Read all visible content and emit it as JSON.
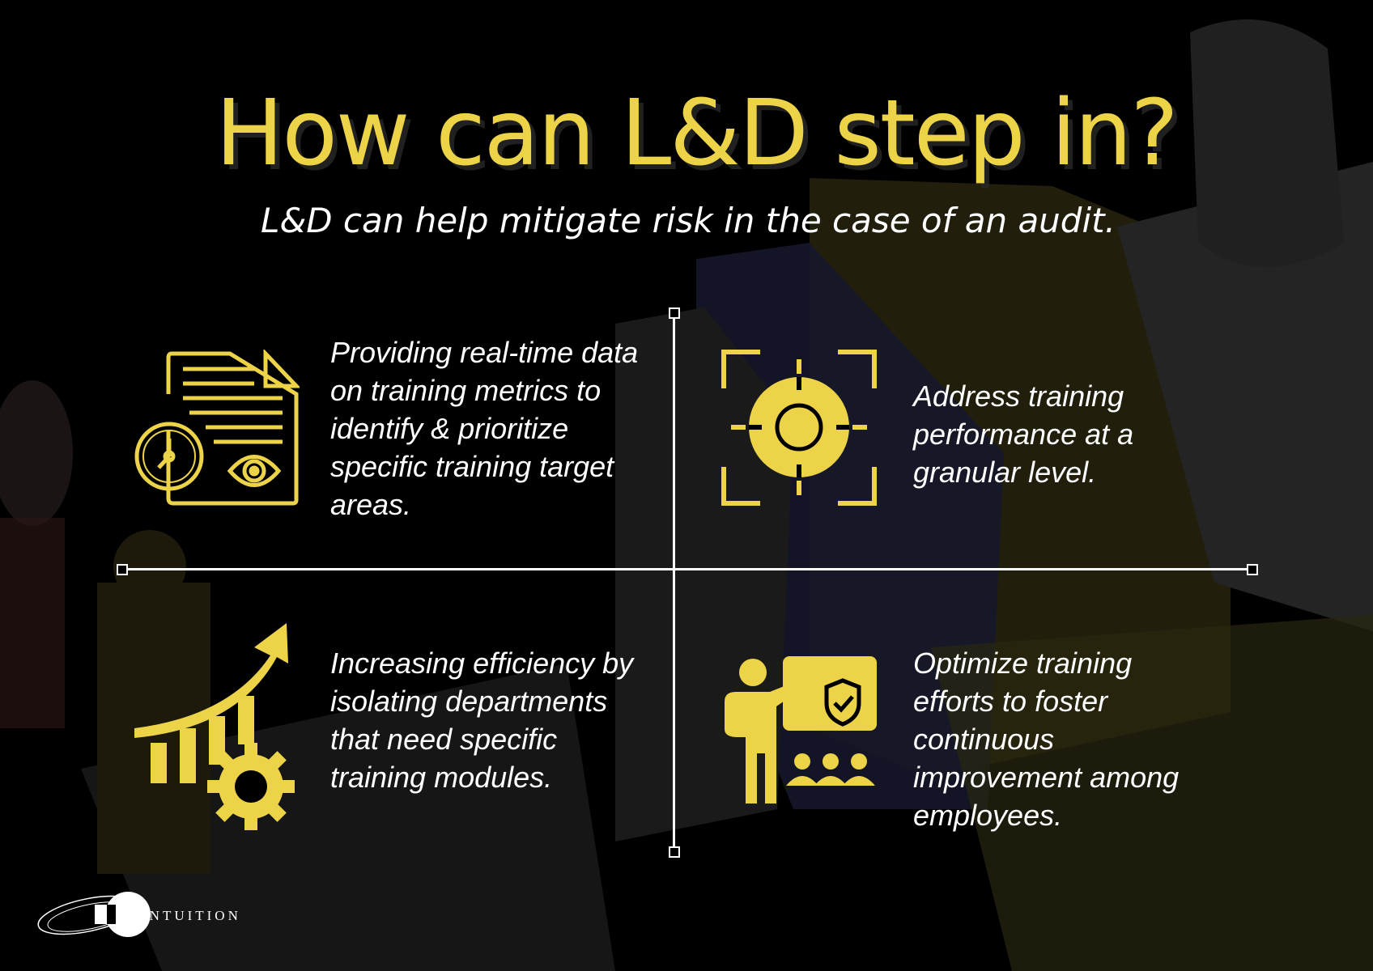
{
  "header": {
    "title": "How can L&D step in?",
    "subtitle": "L&D can help mitigate risk in the case of an audit."
  },
  "quadrants": [
    {
      "icon": "document-clock-eye-icon",
      "text": "Providing real-time data on training metrics to identify & prioritize specific training target areas."
    },
    {
      "icon": "target-crosshair-icon",
      "text": "Address training performance at a granular level."
    },
    {
      "icon": "growth-chart-gear-icon",
      "text": "Increasing efficiency by isolating departments that need specific training modules."
    },
    {
      "icon": "presenter-shield-audience-icon",
      "text": "Optimize training efforts to foster continuous improvement among employees."
    }
  ],
  "footer": {
    "logo_text": "INTUITION"
  },
  "colors": {
    "accent": "#EDD347",
    "background": "#000000",
    "text": "#FFFFFF"
  }
}
